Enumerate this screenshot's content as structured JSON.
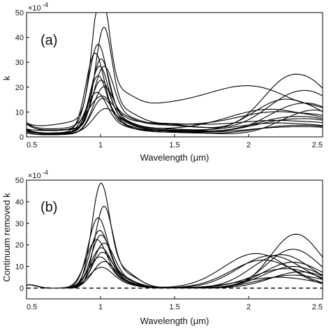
{
  "chart_data": [
    {
      "type": "line",
      "panel_label": "(a)",
      "ylabel": "k",
      "xlabel": "Wavelength (μm)",
      "y_multiplier": "×10",
      "y_multiplier_exp": "-4",
      "xlim": [
        0.5,
        2.5
      ],
      "ylim": [
        0,
        50
      ],
      "xticks": [
        0.5,
        1,
        1.5,
        2,
        2.5
      ],
      "xtick_labels": [
        "0.5",
        "1",
        "1.5",
        "2",
        "2.5"
      ],
      "yticks": [
        0,
        10,
        20,
        30,
        40,
        50
      ],
      "ytick_labels": [
        "0",
        "10",
        "20",
        "30",
        "40",
        "50"
      ],
      "grid": false,
      "legend": false,
      "line_color": "#000000",
      "series": [
        {
          "peak": 47.5,
          "peak_x": 1.0,
          "peak_w": 0.055,
          "start": 2.0,
          "plat": 8.5,
          "tail": 3.0,
          "b2_amp": 16.5,
          "b2_x": 2.03,
          "b2_w": 0.32,
          "end": 17.0
        },
        {
          "peak": 37.0,
          "peak_x": 1.02,
          "peak_w": 0.055,
          "start": 4.0,
          "plat": 4.0,
          "tail": 1.5,
          "b2_amp": 23.0,
          "b2_x": 2.3,
          "b2_w": 0.2,
          "end": 20.0
        },
        {
          "peak": 31.0,
          "peak_x": 0.98,
          "peak_w": 0.06,
          "start": 1.0,
          "plat": 3.0,
          "tail": 2.0,
          "b2_amp": 16.0,
          "b2_x": 2.35,
          "b2_w": 0.22,
          "end": 10.0
        },
        {
          "peak": 29.0,
          "peak_x": 0.96,
          "peak_w": 0.06,
          "start": 1.5,
          "plat": 2.5,
          "tail": 1.0,
          "b2_amp": 14.0,
          "b2_x": 2.25,
          "b2_w": 0.22,
          "end": 9.0
        },
        {
          "peak": 27.0,
          "peak_x": 1.0,
          "peak_w": 0.06,
          "start": 2.0,
          "plat": 2.0,
          "tail": 1.0,
          "b2_amp": 10.0,
          "b2_x": 2.15,
          "b2_w": 0.3,
          "end": 9.0
        },
        {
          "peak": 24.0,
          "peak_x": 0.99,
          "peak_w": 0.06,
          "start": 1.0,
          "plat": 2.5,
          "tail": 1.0,
          "b2_amp": 12.0,
          "b2_x": 2.35,
          "b2_w": 0.22,
          "end": 8.0
        },
        {
          "peak": 22.5,
          "peak_x": 1.02,
          "peak_w": 0.065,
          "start": 3.0,
          "plat": 3.0,
          "tail": 2.0,
          "b2_amp": 8.0,
          "b2_x": 2.2,
          "b2_w": 0.3,
          "end": 10.0
        },
        {
          "peak": 21.0,
          "peak_x": 0.98,
          "peak_w": 0.06,
          "start": 1.0,
          "plat": 1.5,
          "tail": 1.0,
          "b2_amp": 7.0,
          "b2_x": 2.3,
          "b2_w": 0.25,
          "end": 6.0
        },
        {
          "peak": 19.0,
          "peak_x": 1.0,
          "peak_w": 0.065,
          "start": 2.0,
          "plat": 2.0,
          "tail": 1.0,
          "b2_amp": 6.0,
          "b2_x": 2.3,
          "b2_w": 0.25,
          "end": 7.0
        },
        {
          "peak": 17.0,
          "peak_x": 1.02,
          "peak_w": 0.07,
          "start": 1.0,
          "plat": 2.0,
          "tail": 0.5,
          "b2_amp": 5.0,
          "b2_x": 2.2,
          "b2_w": 0.3,
          "end": 5.0
        },
        {
          "peak": 15.0,
          "peak_x": 0.97,
          "peak_w": 0.07,
          "start": 2.5,
          "plat": 2.0,
          "tail": 0.5,
          "b2_amp": 9.0,
          "b2_x": 2.4,
          "b2_w": 0.2,
          "end": 9.0
        },
        {
          "peak": 13.0,
          "peak_x": 1.01,
          "peak_w": 0.07,
          "start": 1.0,
          "plat": 1.5,
          "tail": 0.5,
          "b2_amp": 4.0,
          "b2_x": 2.3,
          "b2_w": 0.25,
          "end": 4.0
        },
        {
          "peak": 11.0,
          "peak_x": 1.0,
          "peak_w": 0.08,
          "start": 3.0,
          "plat": 3.0,
          "tail": 2.5,
          "b2_amp": 4.0,
          "b2_x": 2.2,
          "b2_w": 0.3,
          "end": 6.0
        },
        {
          "peak": 9.0,
          "peak_x": 1.03,
          "peak_w": 0.08,
          "start": 1.5,
          "plat": 1.0,
          "tail": 1.0,
          "b2_amp": 3.0,
          "b2_x": 2.3,
          "b2_w": 0.3,
          "end": 3.0
        }
      ]
    },
    {
      "type": "line",
      "panel_label": "(b)",
      "ylabel": "Continuum removed k",
      "xlabel": "Wavelength (μm)",
      "y_multiplier": "×10",
      "y_multiplier_exp": "-4",
      "xlim": [
        0.5,
        2.5
      ],
      "ylim": [
        -5,
        50
      ],
      "xticks": [
        0.5,
        1,
        1.5,
        2,
        2.5
      ],
      "xtick_labels": [
        "0.5",
        "1",
        "1.5",
        "2",
        "2.5"
      ],
      "yticks": [
        0,
        10,
        20,
        30,
        40,
        50
      ],
      "ytick_labels": [
        "0",
        "10",
        "20",
        "30",
        "40",
        "50"
      ],
      "grid": false,
      "legend": false,
      "line_color": "#000000",
      "zero_line": {
        "y": 0,
        "style": "dashed"
      },
      "series": [
        {
          "peak": 45.5,
          "peak_x": 1.0,
          "peak_w": 0.06,
          "b2_amp": 16.0,
          "b2_x": 2.05,
          "b2_w": 0.22,
          "end": 3.0
        },
        {
          "peak": 35.5,
          "peak_x": 1.02,
          "peak_w": 0.06,
          "b2_amp": 25.0,
          "b2_x": 2.32,
          "b2_w": 0.17,
          "end": 18.0
        },
        {
          "peak": 30.5,
          "peak_x": 0.98,
          "peak_w": 0.065,
          "b2_amp": 15.5,
          "b2_x": 2.22,
          "b2_w": 0.2,
          "end": 8.0
        },
        {
          "peak": 25.0,
          "peak_x": 0.99,
          "peak_w": 0.065,
          "b2_amp": 18.0,
          "b2_x": 2.3,
          "b2_w": 0.18,
          "end": 10.0
        },
        {
          "peak": 23.0,
          "peak_x": 1.0,
          "peak_w": 0.065,
          "b2_amp": 15.0,
          "b2_x": 2.15,
          "b2_w": 0.22,
          "end": 6.0
        },
        {
          "peak": 21.0,
          "peak_x": 0.97,
          "peak_w": 0.07,
          "b2_amp": 12.0,
          "b2_x": 2.3,
          "b2_w": 0.2,
          "end": 7.0
        },
        {
          "peak": 19.5,
          "peak_x": 1.02,
          "peak_w": 0.07,
          "b2_amp": 13.0,
          "b2_x": 2.1,
          "b2_w": 0.22,
          "end": 5.0
        },
        {
          "peak": 17.5,
          "peak_x": 1.0,
          "peak_w": 0.07,
          "b2_amp": 10.0,
          "b2_x": 2.3,
          "b2_w": 0.2,
          "end": 6.0
        },
        {
          "peak": 15.5,
          "peak_x": 1.01,
          "peak_w": 0.07,
          "b2_amp": 9.0,
          "b2_x": 2.25,
          "b2_w": 0.22,
          "end": 5.0
        },
        {
          "peak": 13.5,
          "peak_x": 0.99,
          "peak_w": 0.075,
          "b2_amp": 7.5,
          "b2_x": 2.35,
          "b2_w": 0.2,
          "end": 5.0
        },
        {
          "peak": 11.5,
          "peak_x": 1.02,
          "peak_w": 0.075,
          "b2_amp": 6.0,
          "b2_x": 2.3,
          "b2_w": 0.22,
          "end": 4.0
        },
        {
          "peak": 9.0,
          "peak_x": 1.0,
          "peak_w": 0.08,
          "b2_amp": 5.0,
          "b2_x": 2.2,
          "b2_w": 0.25,
          "end": 3.0
        }
      ]
    }
  ]
}
